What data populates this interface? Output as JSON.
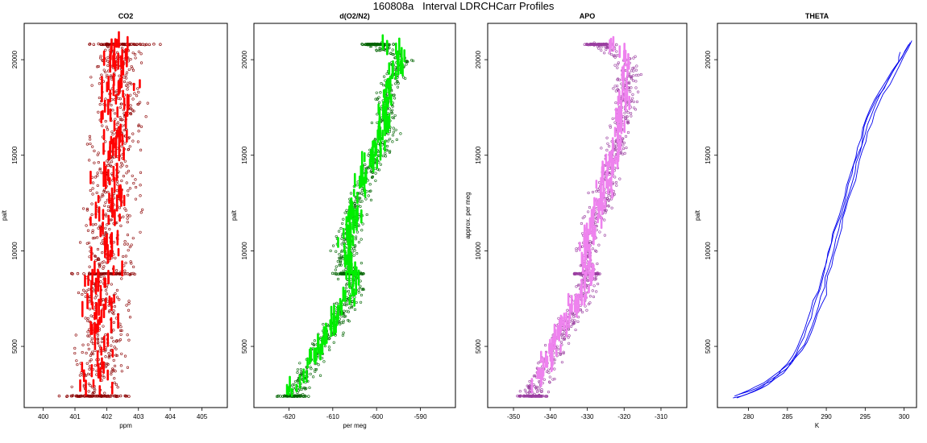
{
  "figure": {
    "title": "160808a   Interval LDRCHCarr Profiles"
  },
  "chart_data": [
    {
      "type": "scatter",
      "title": "CO2",
      "xlabel": "ppm",
      "ylabel": "palt",
      "xlim": [
        399.4,
        405.8
      ],
      "ylim": [
        1800,
        21900
      ],
      "xticks": [
        400,
        401,
        402,
        403,
        404,
        405
      ],
      "yticks": [
        5000,
        10000,
        15000,
        20000
      ],
      "color": "#ff0000",
      "outline": "#8b0000",
      "profile": {
        "pressure": [
          2400,
          4000,
          6000,
          8000,
          8800,
          10000,
          12000,
          14000,
          16000,
          18000,
          20000,
          20800
        ],
        "value": [
          401.6,
          401.8,
          401.9,
          401.8,
          402.0,
          402.0,
          402.1,
          402.2,
          402.3,
          402.4,
          402.3,
          402.4
        ]
      },
      "spread": 0.9,
      "lines": [
        8800,
        20800,
        2400
      ]
    },
    {
      "type": "scatter",
      "title": "d(O2/N2)",
      "xlabel": "per meg",
      "ylabel": "palt",
      "xlim": [
        -628,
        -582
      ],
      "ylim": [
        1800,
        21900
      ],
      "xticks": [
        -620,
        -610,
        -600,
        -590
      ],
      "yticks": [
        5000,
        10000,
        15000,
        20000
      ],
      "color": "#00ee00",
      "outline": "#006400",
      "profile": {
        "pressure": [
          2400,
          4000,
          6000,
          8000,
          8800,
          10000,
          12000,
          14000,
          16000,
          18000,
          20000,
          20800
        ],
        "value": [
          -619,
          -615,
          -610,
          -605,
          -606,
          -607,
          -605,
          -602,
          -598,
          -598,
          -594,
          -600
        ]
      },
      "spread": 3.0,
      "lines": [
        8800,
        20800,
        2400
      ]
    },
    {
      "type": "scatter",
      "title": "APO",
      "xlabel": "",
      "ylabel": "approx. per meg",
      "xlim": [
        -357,
        -303
      ],
      "ylim": [
        1800,
        21900
      ],
      "xticks": [
        -350,
        -340,
        -330,
        -320,
        -310
      ],
      "yticks": [
        5000,
        10000,
        15000,
        20000
      ],
      "color": "#ee82ee",
      "outline": "#9a3ea0",
      "profile": {
        "pressure": [
          2400,
          4000,
          6000,
          8000,
          8800,
          10000,
          12000,
          14000,
          16000,
          18000,
          20000,
          20800
        ],
        "value": [
          -345,
          -341,
          -336,
          -330,
          -330,
          -330,
          -327,
          -324,
          -321,
          -320,
          -319,
          -327
        ]
      },
      "spread": 3.5,
      "lines": [
        8800,
        20800,
        2400
      ]
    },
    {
      "type": "line",
      "title": "THETA",
      "xlabel": "K",
      "ylabel": "palt",
      "xlim": [
        276.0,
        301.6
      ],
      "ylim": [
        1800,
        21900
      ],
      "xticks": [
        280,
        285,
        290,
        295,
        300
      ],
      "yticks": [
        5000,
        10000,
        15000,
        20000
      ],
      "color": "#0000ee",
      "series": [
        {
          "pressure": [
            2300,
            2600,
            3000,
            3600,
            4200,
            5000,
            6000,
            7000,
            8000,
            9000,
            10000,
            11000,
            12000,
            13000,
            14000,
            15000,
            16000,
            17000,
            18000,
            19000,
            20000,
            20900
          ],
          "value": [
            278.5,
            280.5,
            282.5,
            284.5,
            285.5,
            286.5,
            287.5,
            288.3,
            289.2,
            289.8,
            290.4,
            291.0,
            292.0,
            292.6,
            293.3,
            294.0,
            294.7,
            295.3,
            296.5,
            298.0,
            299.5,
            300.8
          ]
        },
        {
          "pressure": [
            2400,
            2700,
            3100,
            3700,
            4300,
            5100,
            6100,
            7100,
            8100,
            9100,
            10100,
            11100,
            12100,
            13100,
            14100,
            15100,
            16100,
            17100,
            18100,
            19100,
            20100,
            20800
          ],
          "value": [
            278.2,
            280.0,
            282.0,
            284.0,
            285.8,
            287.2,
            288.2,
            289.0,
            289.8,
            290.3,
            291.0,
            291.6,
            292.3,
            293.0,
            293.7,
            294.3,
            295.0,
            295.8,
            296.8,
            298.2,
            299.7,
            300.6
          ]
        },
        {
          "pressure": [
            2500,
            2800,
            3200,
            3800,
            4400,
            5200,
            6200,
            7200,
            8200,
            9200,
            10200,
            11200,
            12200,
            13200,
            14200,
            15200,
            16200,
            17200,
            18200,
            19200,
            20200,
            21000
          ],
          "value": [
            278.8,
            281.0,
            283.0,
            284.8,
            286.0,
            287.5,
            288.5,
            289.4,
            290.0,
            290.7,
            291.3,
            292.0,
            292.5,
            293.3,
            294.0,
            294.6,
            295.3,
            296.2,
            297.3,
            298.8,
            300.0,
            301.0
          ]
        },
        {
          "pressure": [
            2300,
            2500,
            2900,
            3500,
            4100,
            4900,
            5900,
            6900,
            7900,
            8900,
            9900,
            10900,
            11900,
            12900,
            13900,
            14900,
            15900,
            16900,
            17900,
            18900,
            19900,
            20400
          ],
          "value": [
            278.0,
            279.8,
            281.8,
            283.8,
            285.0,
            286.2,
            287.2,
            288.0,
            289.0,
            289.6,
            290.2,
            290.8,
            291.7,
            292.4,
            293.0,
            293.8,
            294.5,
            295.1,
            296.2,
            297.7,
            299.3,
            299.5
          ]
        }
      ]
    }
  ]
}
